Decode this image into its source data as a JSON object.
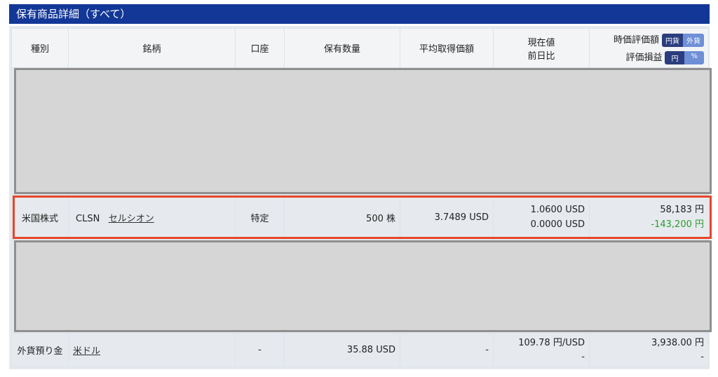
{
  "title": "保有商品詳細（すべて）",
  "headers": {
    "type": "種別",
    "name": "銘柄",
    "account": "口座",
    "qty": "保有数量",
    "avg": "平均取得価額",
    "price": "現在値",
    "change": "前日比",
    "value": "時価評価額",
    "pl": "評価損益",
    "value_toggle": [
      "円貨",
      "外貨"
    ],
    "pl_toggle": [
      "円",
      "%"
    ]
  },
  "rows": [
    {
      "type": "米国株式",
      "ticker": "CLSN",
      "name": "セルシオン",
      "account": "特定",
      "qty": "500 株",
      "avg": "3.7489 USD",
      "price": "1.0600 USD",
      "change": "0.0000 USD",
      "value": "58,183 円",
      "pl": "-143,200 円"
    },
    {
      "type": "外貨預り金",
      "name": "米ドル",
      "account": "-",
      "qty": "35.88 USD",
      "avg": "-",
      "price": "109.78 円/USD",
      "change": "-",
      "value": "3,938.00 円",
      "pl": "-"
    }
  ],
  "colors": {
    "header": "#123797",
    "highlight": "#e8442a",
    "negative": "#2e9a2e"
  }
}
